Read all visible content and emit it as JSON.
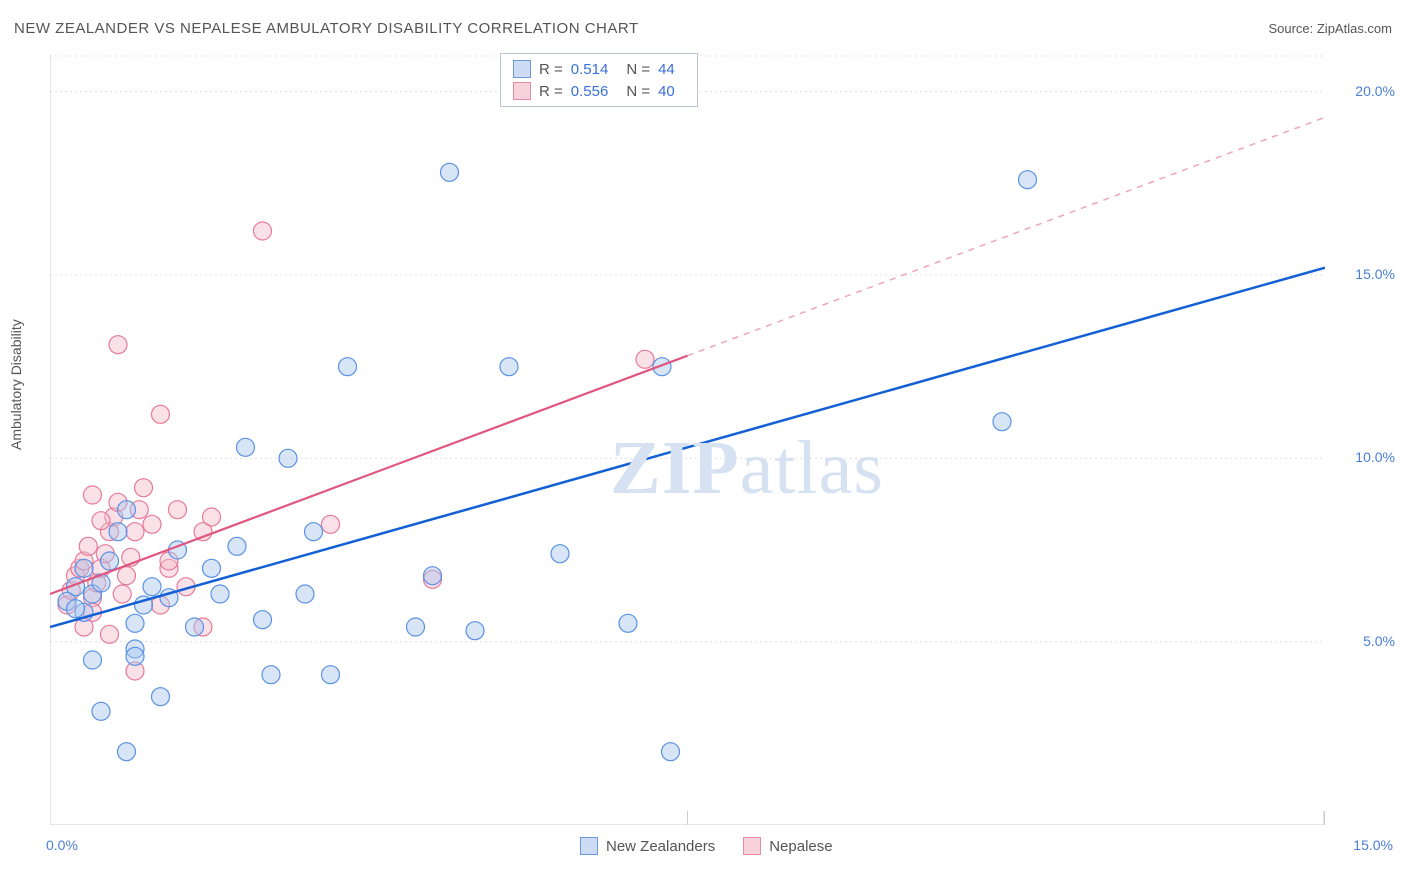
{
  "title": "NEW ZEALANDER VS NEPALESE AMBULATORY DISABILITY CORRELATION CHART",
  "source_label": "Source: ",
  "source_name": "ZipAtlas.com",
  "y_axis_label": "Ambulatory Disability",
  "watermark": "ZIPatlas",
  "chart": {
    "type": "scatter",
    "background_color": "#ffffff",
    "grid_color": "#e0e0e0",
    "grid_dash": "2,3",
    "axis_color": "#cccccc",
    "xlim": [
      0,
      15
    ],
    "ylim": [
      0,
      21
    ],
    "x_ticks": [
      {
        "v": 0,
        "label": "0.0%"
      },
      {
        "v": 15,
        "label": "15.0%"
      }
    ],
    "x_tick_marks": [
      0,
      7.5,
      15
    ],
    "y_ticks": [
      {
        "v": 5,
        "label": "5.0%"
      },
      {
        "v": 10,
        "label": "10.0%"
      },
      {
        "v": 15,
        "label": "15.0%"
      },
      {
        "v": 20,
        "label": "20.0%"
      }
    ],
    "y_tick_label_color": "#4a7fd6",
    "y_tick_fontsize": 14,
    "marker_radius": 9,
    "marker_stroke_width": 1.2,
    "marker_fill_opacity": 0.45
  },
  "series": [
    {
      "id": "new_zealanders",
      "label": "New Zealanders",
      "color_stroke": "#5a92e5",
      "color_fill": "#a8c5ee",
      "swatch_fill": "#cddcf4",
      "swatch_border": "#6b99dd",
      "r_value": "0.514",
      "n_value": "44",
      "regression": {
        "x1": 0,
        "y1": 5.4,
        "x2": 15,
        "y2": 15.2,
        "stroke": "#1360d6",
        "width": 2.5,
        "dash": "none"
      },
      "points": [
        [
          0.2,
          6.1
        ],
        [
          0.3,
          6.5
        ],
        [
          0.4,
          5.8
        ],
        [
          0.5,
          6.3
        ],
        [
          0.6,
          6.6
        ],
        [
          0.4,
          7.0
        ],
        [
          0.7,
          7.2
        ],
        [
          0.8,
          8.0
        ],
        [
          0.9,
          8.6
        ],
        [
          1.0,
          5.5
        ],
        [
          1.1,
          6.0
        ],
        [
          1.2,
          6.5
        ],
        [
          0.5,
          4.5
        ],
        [
          0.6,
          3.1
        ],
        [
          1.0,
          4.8
        ],
        [
          1.3,
          3.5
        ],
        [
          1.4,
          6.2
        ],
        [
          1.5,
          7.5
        ],
        [
          1.7,
          5.4
        ],
        [
          1.9,
          7.0
        ],
        [
          2.0,
          6.3
        ],
        [
          2.2,
          7.6
        ],
        [
          2.3,
          10.3
        ],
        [
          2.5,
          5.6
        ],
        [
          2.6,
          4.1
        ],
        [
          2.8,
          10.0
        ],
        [
          3.0,
          6.3
        ],
        [
          3.1,
          8.0
        ],
        [
          3.3,
          4.1
        ],
        [
          3.5,
          12.5
        ],
        [
          0.9,
          2.0
        ],
        [
          1.0,
          4.6
        ],
        [
          4.3,
          5.4
        ],
        [
          4.5,
          6.8
        ],
        [
          4.7,
          17.8
        ],
        [
          5.0,
          5.3
        ],
        [
          5.4,
          12.5
        ],
        [
          6.0,
          7.4
        ],
        [
          6.8,
          5.5
        ],
        [
          7.2,
          12.5
        ],
        [
          7.3,
          2.0
        ],
        [
          11.2,
          11.0
        ],
        [
          11.5,
          17.6
        ],
        [
          0.3,
          5.9
        ]
      ]
    },
    {
      "id": "nepalese",
      "label": "Nepalese",
      "color_stroke": "#e77a9a",
      "color_fill": "#f5bcca",
      "swatch_fill": "#f7d2db",
      "swatch_border": "#e58aa6",
      "r_value": "0.556",
      "n_value": "40",
      "regression_solid": {
        "x1": 0,
        "y1": 6.3,
        "x2": 7.5,
        "y2": 12.8,
        "stroke": "#e0567e",
        "width": 2.2,
        "dash": "none"
      },
      "regression_dash": {
        "x1": 7.5,
        "y1": 12.8,
        "x2": 15,
        "y2": 19.3,
        "stroke": "#f0a4b8",
        "width": 1.5,
        "dash": "6,6"
      },
      "points": [
        [
          0.2,
          6.0
        ],
        [
          0.25,
          6.4
        ],
        [
          0.3,
          6.8
        ],
        [
          0.35,
          7.0
        ],
        [
          0.4,
          7.2
        ],
        [
          0.45,
          7.6
        ],
        [
          0.5,
          6.2
        ],
        [
          0.55,
          6.6
        ],
        [
          0.6,
          7.0
        ],
        [
          0.65,
          7.4
        ],
        [
          0.7,
          8.0
        ],
        [
          0.75,
          8.4
        ],
        [
          0.8,
          8.8
        ],
        [
          0.85,
          6.3
        ],
        [
          0.9,
          6.8
        ],
        [
          0.95,
          7.3
        ],
        [
          1.0,
          8.0
        ],
        [
          1.05,
          8.6
        ],
        [
          1.1,
          9.2
        ],
        [
          0.4,
          5.4
        ],
        [
          0.5,
          5.8
        ],
        [
          1.2,
          8.2
        ],
        [
          1.3,
          6.0
        ],
        [
          1.4,
          7.0
        ],
        [
          1.5,
          8.6
        ],
        [
          1.6,
          6.5
        ],
        [
          1.8,
          8.0
        ],
        [
          1.9,
          8.4
        ],
        [
          0.8,
          13.1
        ],
        [
          1.3,
          11.2
        ],
        [
          2.5,
          16.2
        ],
        [
          1.0,
          4.2
        ],
        [
          0.7,
          5.2
        ],
        [
          1.8,
          5.4
        ],
        [
          3.3,
          8.2
        ],
        [
          1.4,
          7.2
        ],
        [
          4.5,
          6.7
        ],
        [
          7.0,
          12.7
        ],
        [
          0.6,
          8.3
        ],
        [
          0.5,
          9.0
        ]
      ]
    }
  ],
  "stats_box": {
    "r_label": "R  =",
    "n_label": "N  ="
  }
}
